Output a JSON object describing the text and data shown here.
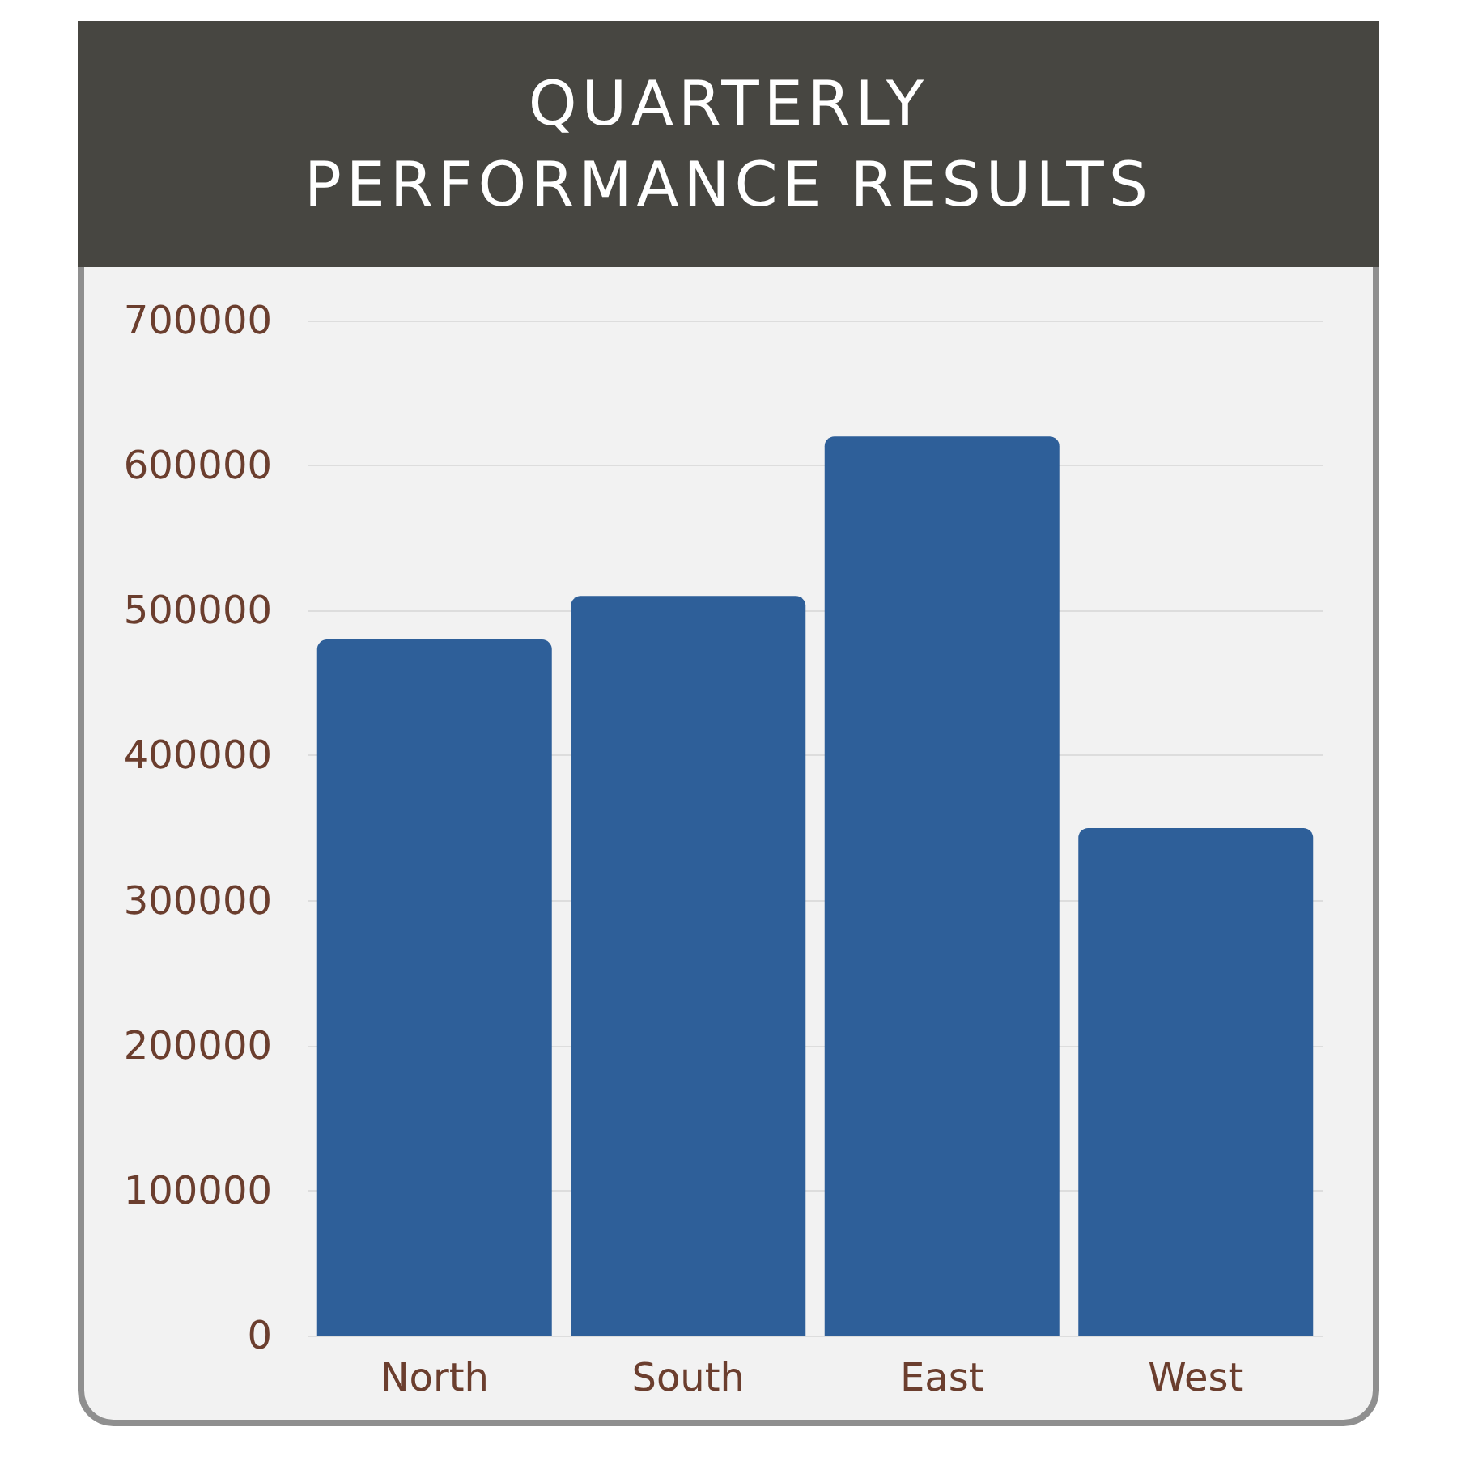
{
  "chart_data": {
    "type": "bar",
    "title": "QUARTERLY PERFORMANCE RESULTS",
    "categories": [
      "North",
      "South",
      "East",
      "West"
    ],
    "values": [
      480000,
      510000,
      620000,
      350000
    ],
    "color": "#2e5f99",
    "ylim": [
      0,
      700000
    ],
    "yticks": [
      0,
      100000,
      200000,
      300000,
      400000,
      500000,
      600000,
      700000
    ],
    "grid": "y"
  }
}
